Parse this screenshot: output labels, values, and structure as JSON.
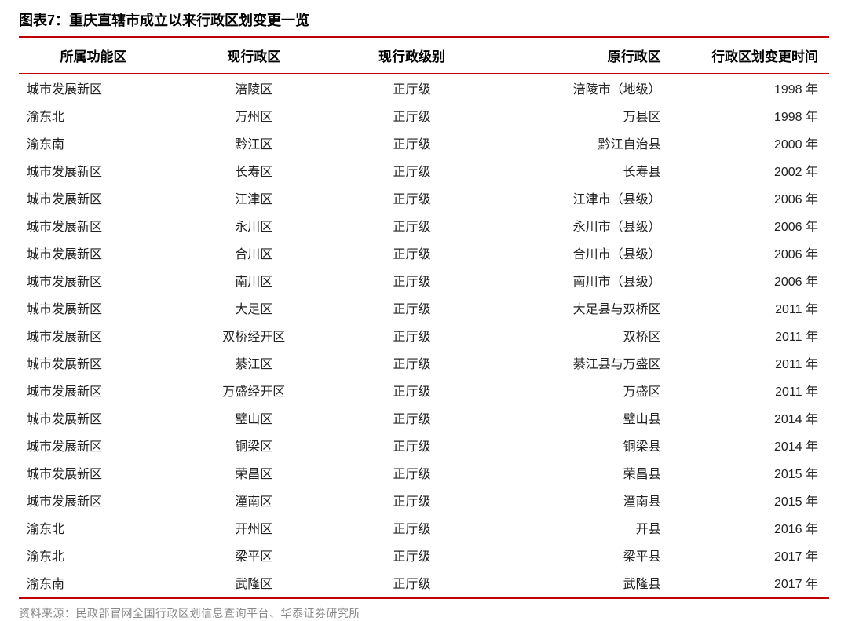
{
  "title_prefix": "图表7：",
  "title_text": "重庆直辖市成立以来行政区划变更一览",
  "columns": {
    "zone": "所属功能区",
    "current": "现行政区",
    "level": "现行政级别",
    "orig": "原行政区",
    "time": "行政区划变更时间"
  },
  "rows": [
    {
      "zone": "城市发展新区",
      "current": "涪陵区",
      "level": "正厅级",
      "orig": "涪陵市（地级）",
      "time": "1998 年"
    },
    {
      "zone": "渝东北",
      "current": "万州区",
      "level": "正厅级",
      "orig": "万县区",
      "time": "1998 年"
    },
    {
      "zone": "渝东南",
      "current": "黔江区",
      "level": "正厅级",
      "orig": "黔江自治县",
      "time": "2000 年"
    },
    {
      "zone": "城市发展新区",
      "current": "长寿区",
      "level": "正厅级",
      "orig": "长寿县",
      "time": "2002 年"
    },
    {
      "zone": "城市发展新区",
      "current": "江津区",
      "level": "正厅级",
      "orig": "江津市（县级）",
      "time": "2006 年"
    },
    {
      "zone": "城市发展新区",
      "current": "永川区",
      "level": "正厅级",
      "orig": "永川市（县级）",
      "time": "2006 年"
    },
    {
      "zone": "城市发展新区",
      "current": "合川区",
      "level": "正厅级",
      "orig": "合川市（县级）",
      "time": "2006 年"
    },
    {
      "zone": "城市发展新区",
      "current": "南川区",
      "level": "正厅级",
      "orig": "南川市（县级）",
      "time": "2006 年"
    },
    {
      "zone": "城市发展新区",
      "current": "大足区",
      "level": "正厅级",
      "orig": "大足县与双桥区",
      "time": "2011 年"
    },
    {
      "zone": "城市发展新区",
      "current": "双桥经开区",
      "level": "正厅级",
      "orig": "双桥区",
      "time": "2011 年"
    },
    {
      "zone": "城市发展新区",
      "current": "綦江区",
      "level": "正厅级",
      "orig": "綦江县与万盛区",
      "time": "2011 年"
    },
    {
      "zone": "城市发展新区",
      "current": "万盛经开区",
      "level": "正厅级",
      "orig": "万盛区",
      "time": "2011 年"
    },
    {
      "zone": "城市发展新区",
      "current": "璧山区",
      "level": "正厅级",
      "orig": "璧山县",
      "time": "2014 年"
    },
    {
      "zone": "城市发展新区",
      "current": "铜梁区",
      "level": "正厅级",
      "orig": "铜梁县",
      "time": "2014 年"
    },
    {
      "zone": "城市发展新区",
      "current": "荣昌区",
      "level": "正厅级",
      "orig": "荣昌县",
      "time": "2015 年"
    },
    {
      "zone": "城市发展新区",
      "current": "潼南区",
      "level": "正厅级",
      "orig": "潼南县",
      "time": "2015 年"
    },
    {
      "zone": "渝东北",
      "current": "开州区",
      "level": "正厅级",
      "orig": "开县",
      "time": "2016 年"
    },
    {
      "zone": "渝东北",
      "current": "梁平区",
      "level": "正厅级",
      "orig": "梁平县",
      "time": "2017 年"
    },
    {
      "zone": "渝东南",
      "current": "武隆区",
      "level": "正厅级",
      "orig": "武隆县",
      "time": "2017 年"
    }
  ],
  "source": "资料来源：民政部官网全国行政区划信息查询平台、华泰证券研究所",
  "colors": {
    "accent": "#c00000",
    "text": "#222222",
    "muted": "#888888",
    "background": "#ffffff"
  }
}
